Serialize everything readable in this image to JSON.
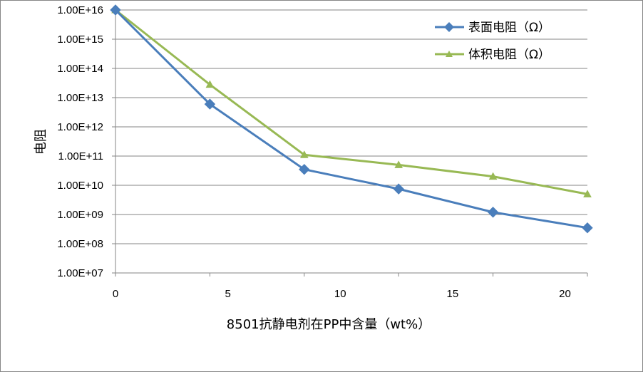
{
  "chart_data": {
    "type": "line",
    "y_scale": "log",
    "ylim": [
      "1.00E+07",
      "1.00E+16"
    ],
    "xlim": [
      0,
      21
    ],
    "grid": "horizontal",
    "legend_position": "top-right",
    "xlabel": "8501抗静电剂在PP中含量（wt%）",
    "ylabel": "电阻",
    "y_ticks": [
      "1.00E+16",
      "1.00E+15",
      "1.00E+14",
      "1.00E+13",
      "1.00E+12",
      "1.00E+11",
      "1.00E+10",
      "1.00E+09",
      "1.00E+08",
      "1.00E+07"
    ],
    "x_ticks": [
      0,
      5,
      10,
      15,
      20
    ],
    "x": [
      0,
      4.2,
      8.4,
      12.6,
      16.8,
      21
    ],
    "series": [
      {
        "name": "表面电阻（Ω）",
        "color": "#4a7ebb",
        "marker": "diamond",
        "values": [
          1e+16,
          6000000000000.0,
          35000000000.0,
          7500000000.0,
          1200000000.0,
          350000000.0
        ]
      },
      {
        "name": "体积电阻（Ω）",
        "color": "#98b954",
        "marker": "triangle",
        "values": [
          1e+16,
          28000000000000.0,
          110000000000.0,
          50000000000.0,
          20000000000.0,
          5000000000.0
        ]
      }
    ]
  }
}
